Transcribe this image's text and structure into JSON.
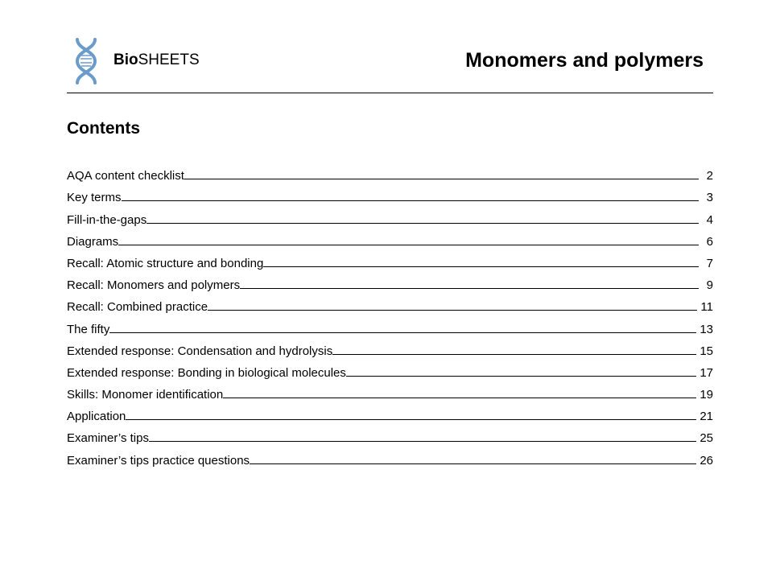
{
  "header": {
    "brand_bold": "Bio",
    "brand_rest": "SHEETS",
    "title": "Monomers and polymers",
    "logo_color": "#6b9bcb"
  },
  "contents": {
    "heading": "Contents",
    "items": [
      {
        "label": "AQA content checklist",
        "page": "2"
      },
      {
        "label": "Key terms",
        "page": "3"
      },
      {
        "label": "Fill-in-the-gaps",
        "page": "4"
      },
      {
        "label": "Diagrams",
        "page": "6"
      },
      {
        "label": "Recall: Atomic structure and bonding",
        "page": "7"
      },
      {
        "label": "Recall: Monomers and polymers",
        "page": "9"
      },
      {
        "label": "Recall: Combined practice",
        "page": "11"
      },
      {
        "label": "The fifty",
        "page": "13"
      },
      {
        "label": "Extended response: Condensation and hydrolysis",
        "page": "15"
      },
      {
        "label": "Extended response: Bonding in biological molecules",
        "page": "17"
      },
      {
        "label": "Skills: Monomer identification",
        "page": "19"
      },
      {
        "label": "Application",
        "page": "21"
      },
      {
        "label": "Examiner’s tips",
        "page": "25"
      },
      {
        "label": "Examiner’s tips practice questions",
        "page": "26"
      }
    ]
  }
}
